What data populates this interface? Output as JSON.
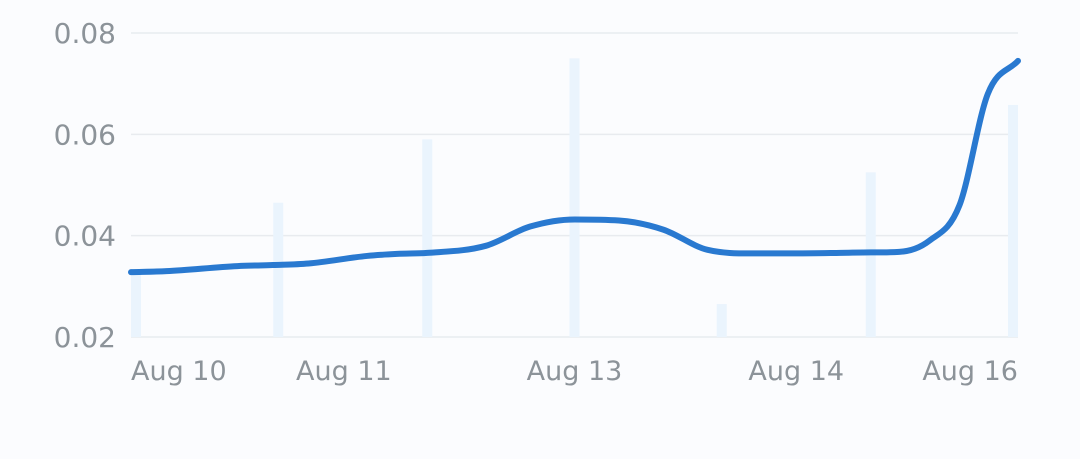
{
  "chart_data": {
    "type": "line",
    "title": "",
    "xlabel": "",
    "ylabel": "",
    "ylim": [
      0.02,
      0.08
    ],
    "y_ticks": [
      "0.08",
      "0.06",
      "0.04",
      "0.02"
    ],
    "y_tick_values": [
      0.08,
      0.06,
      0.04,
      0.02
    ],
    "x_tick_labels": [
      {
        "label": "Aug 10",
        "x": 0
      },
      {
        "label": "Aug 11",
        "x": 1.2
      },
      {
        "label": "Aug 13",
        "x": 2.5
      },
      {
        "label": "Aug 14",
        "x": 3.75
      },
      {
        "label": "Aug 16",
        "x": 5
      }
    ],
    "grid": true,
    "x_range": [
      0,
      5
    ],
    "series": [
      {
        "type": "line",
        "color": "#2979d0",
        "x": [
          0,
          0.2,
          0.6,
          0.8,
          1.0,
          1.33,
          1.5,
          1.67,
          2.0,
          2.25,
          2.5,
          2.75,
          3.0,
          3.25,
          3.5,
          3.75,
          4.0,
          4.17,
          4.33,
          4.5,
          4.67,
          4.83,
          5.0
        ],
        "values": [
          0.0328,
          0.033,
          0.034,
          0.0342,
          0.0345,
          0.036,
          0.0364,
          0.0366,
          0.038,
          0.0418,
          0.0432,
          0.043,
          0.0412,
          0.0372,
          0.0365,
          0.0365,
          0.0366,
          0.0367,
          0.0368,
          0.039,
          0.046,
          0.068,
          0.0745
        ]
      },
      {
        "type": "bar",
        "color": "#eaf4fd",
        "x": [
          0,
          0.83,
          1.67,
          2.5,
          3.33,
          4.17,
          5.0
        ],
        "values": [
          0.033,
          0.0465,
          0.059,
          0.075,
          0.0265,
          0.0525,
          0.0658
        ]
      }
    ]
  }
}
